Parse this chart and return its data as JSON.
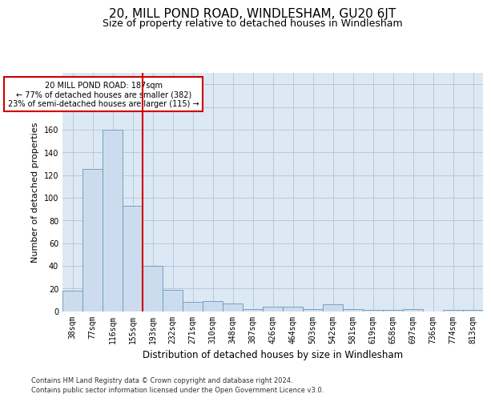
{
  "title": "20, MILL POND ROAD, WINDLESHAM, GU20 6JT",
  "subtitle": "Size of property relative to detached houses in Windlesham",
  "xlabel": "Distribution of detached houses by size in Windlesham",
  "ylabel": "Number of detached properties",
  "footnote1": "Contains HM Land Registry data © Crown copyright and database right 2024.",
  "footnote2": "Contains public sector information licensed under the Open Government Licence v3.0.",
  "categories": [
    "38sqm",
    "77sqm",
    "116sqm",
    "155sqm",
    "193sqm",
    "232sqm",
    "271sqm",
    "310sqm",
    "348sqm",
    "387sqm",
    "426sqm",
    "464sqm",
    "503sqm",
    "542sqm",
    "581sqm",
    "619sqm",
    "658sqm",
    "697sqm",
    "736sqm",
    "774sqm",
    "813sqm"
  ],
  "values": [
    18,
    125,
    160,
    93,
    40,
    19,
    8,
    9,
    7,
    2,
    4,
    4,
    2,
    6,
    2,
    1,
    1,
    2,
    0,
    1,
    1
  ],
  "bar_color": "#ccdcee",
  "bar_edge_color": "#6699bb",
  "vline_color": "#cc0000",
  "vline_pos": 3.5,
  "annotation_text": "20 MILL POND ROAD: 187sqm\n← 77% of detached houses are smaller (382)\n23% of semi-detached houses are larger (115) →",
  "annotation_box_color": "#cc0000",
  "ylim": [
    0,
    210
  ],
  "yticks": [
    0,
    20,
    40,
    60,
    80,
    100,
    120,
    140,
    160,
    180,
    200
  ],
  "grid_color": "#b8c8dc",
  "background_color": "#dce8f4",
  "title_fontsize": 11,
  "subtitle_fontsize": 9,
  "ylabel_fontsize": 8,
  "xlabel_fontsize": 8.5,
  "tick_fontsize": 7,
  "footnote_fontsize": 6
}
